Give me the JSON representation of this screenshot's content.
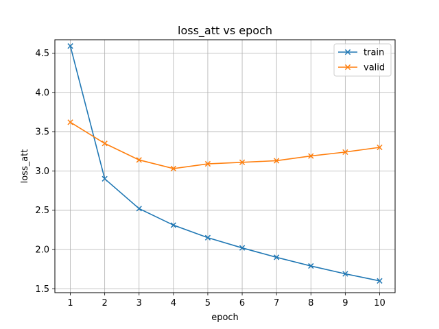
{
  "chart_data": {
    "type": "line",
    "title": "loss_att vs epoch",
    "xlabel": "epoch",
    "ylabel": "loss_att",
    "x": [
      1,
      2,
      3,
      4,
      5,
      6,
      7,
      8,
      9,
      10
    ],
    "xlim": [
      0.55,
      10.45
    ],
    "ylim": [
      1.45,
      4.67
    ],
    "xticks": [
      1,
      2,
      3,
      4,
      5,
      6,
      7,
      8,
      9,
      10
    ],
    "yticks": [
      1.5,
      2.0,
      2.5,
      3.0,
      3.5,
      4.0,
      4.5
    ],
    "ytick_labels": [
      "1.5",
      "2.0",
      "2.5",
      "3.0",
      "3.5",
      "4.0",
      "4.5"
    ],
    "grid": true,
    "legend_position": "top-right",
    "marker": "x",
    "series": [
      {
        "name": "train",
        "color": "#1f77b4",
        "values": [
          4.59,
          2.9,
          2.52,
          2.31,
          2.15,
          2.02,
          1.9,
          1.79,
          1.69,
          1.6
        ]
      },
      {
        "name": "valid",
        "color": "#ff7f0e",
        "values": [
          3.62,
          3.35,
          3.14,
          3.03,
          3.09,
          3.11,
          3.13,
          3.19,
          3.24,
          3.3
        ]
      }
    ]
  }
}
